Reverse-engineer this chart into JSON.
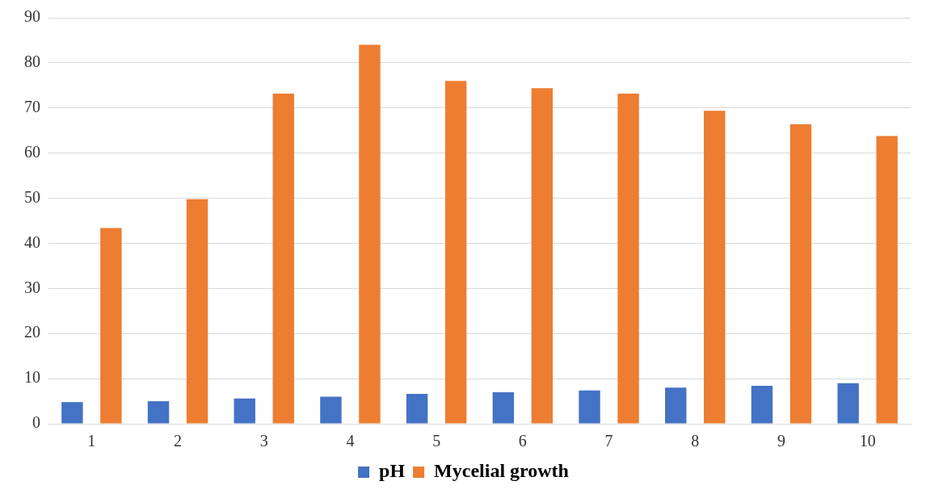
{
  "chart_data": {
    "type": "bar",
    "categories": [
      "1",
      "2",
      "3",
      "4",
      "5",
      "6",
      "7",
      "8",
      "9",
      "10"
    ],
    "series": [
      {
        "name": "pH",
        "color": "#4472c4",
        "values": [
          4.8,
          5,
          5.6,
          6,
          6.6,
          7,
          7.4,
          8,
          8.4,
          9
        ]
      },
      {
        "name": "Mycelial growth",
        "color": "#ed7d31",
        "values": [
          43.4,
          49.8,
          73.2,
          84,
          76,
          74.4,
          73.2,
          69.4,
          66.4,
          63.8
        ]
      }
    ],
    "ylim": [
      0,
      90
    ],
    "yticks": [
      0,
      10,
      20,
      30,
      40,
      50,
      60,
      70,
      80,
      90
    ],
    "grid": "y",
    "legend": "bottom"
  }
}
